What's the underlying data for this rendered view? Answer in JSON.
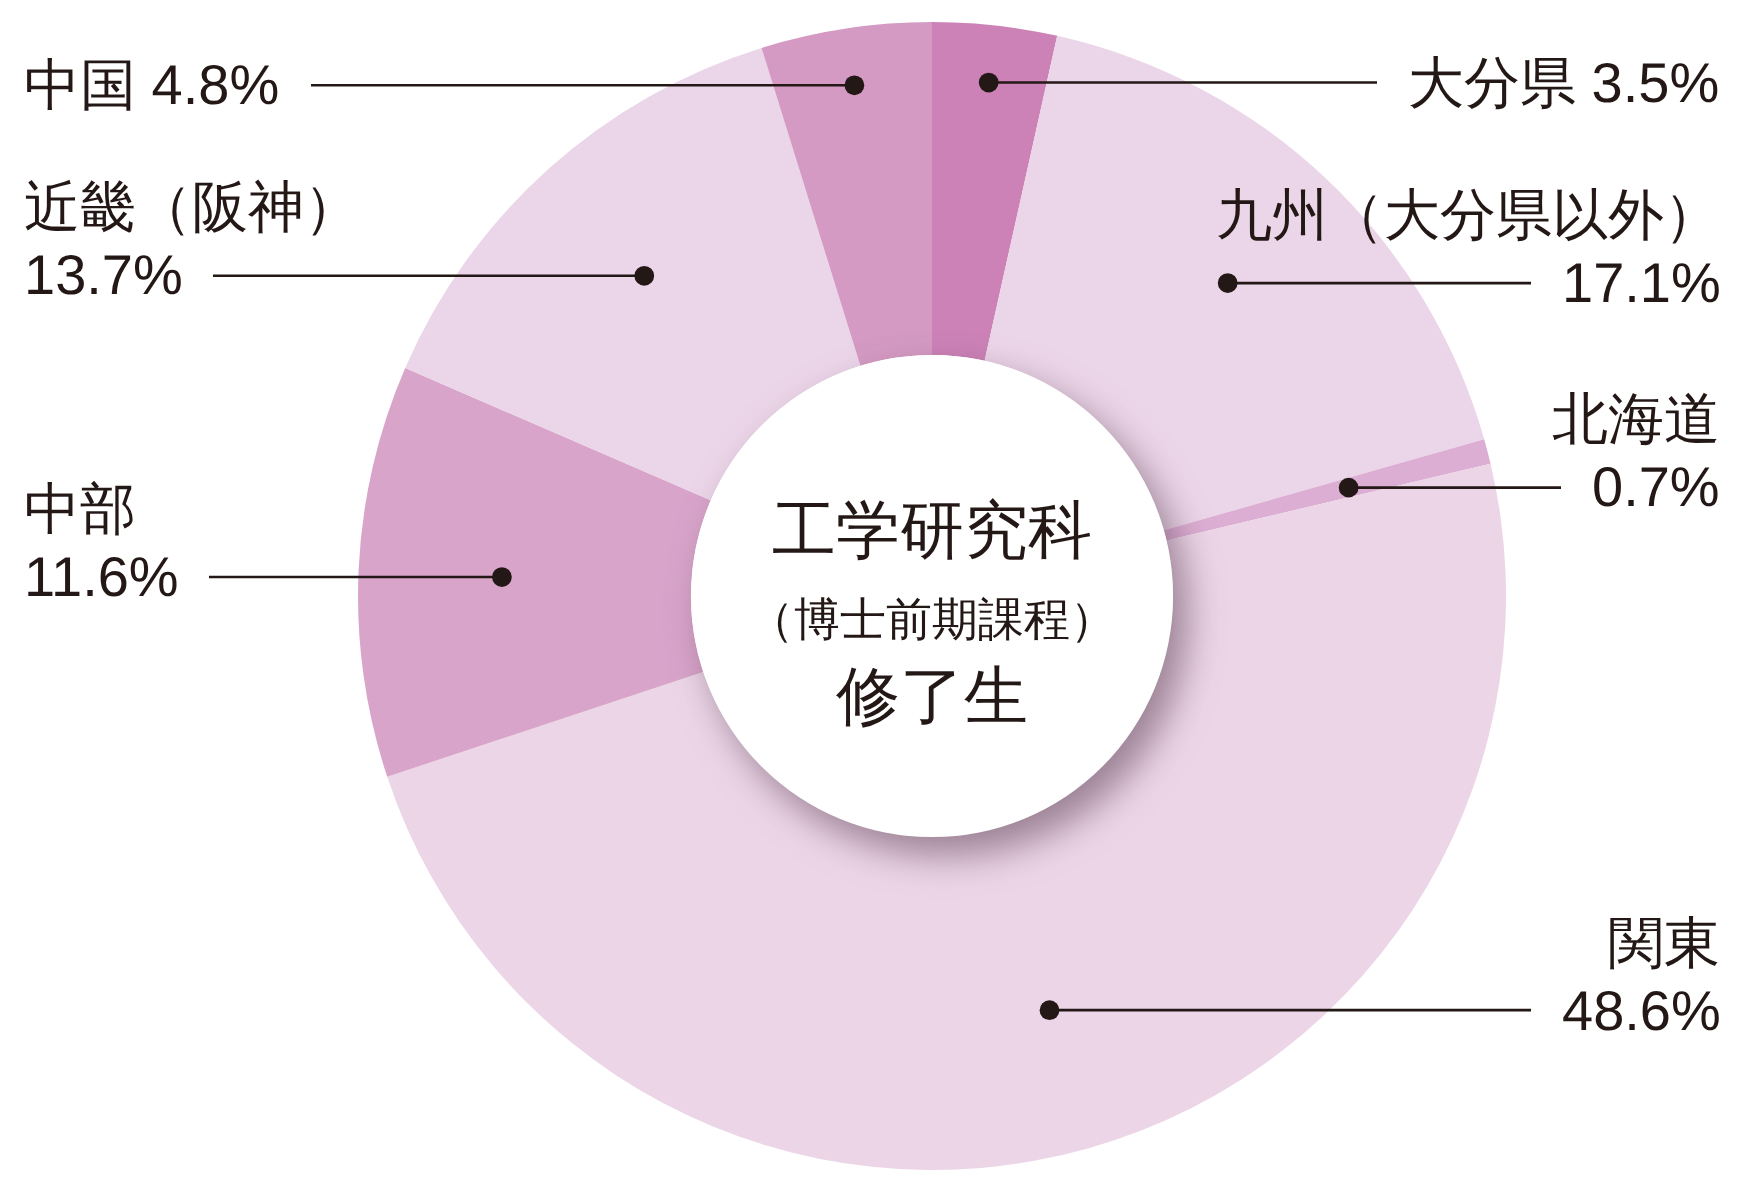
{
  "chart_data": {
    "type": "donut",
    "title": "工学研究科（博士前期課程）修了生",
    "categories": [
      "大分県",
      "九州（大分県以外）",
      "北海道",
      "関東",
      "中部",
      "近畿（阪神）",
      "中国"
    ],
    "values": [
      3.5,
      17.1,
      0.7,
      48.6,
      11.6,
      13.7,
      4.8
    ],
    "value_labels": [
      "3.5%",
      "17.1%",
      "0.7%",
      "48.6%",
      "11.6%",
      "13.7%",
      "4.8%"
    ],
    "colors": [
      "#cc82b7",
      "#ebd5e8",
      "#dcaed3",
      "#ebd5e7",
      "#d8a4ca",
      "#ebd5e8",
      "#d49ac3"
    ]
  }
}
